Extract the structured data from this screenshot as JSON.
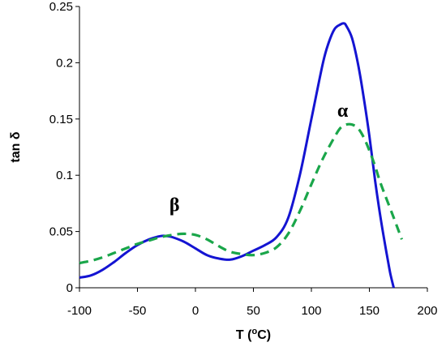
{
  "chart_data": {
    "type": "line",
    "title": "",
    "xlabel_prefix": "T (",
    "xlabel_sup": "o",
    "xlabel_suffix": "C)",
    "ylabel": "tan δ",
    "xlim": [
      -100,
      200
    ],
    "ylim": [
      0,
      0.25
    ],
    "x_ticks": [
      "-100",
      "-50",
      "0",
      "50",
      "100",
      "150",
      "200"
    ],
    "y_ticks": [
      "0",
      "0.05",
      "0.1",
      "0.15",
      "0.2",
      "0.25"
    ],
    "grid": false,
    "legend": "none",
    "annotations": [
      {
        "text": "β",
        "x": -18,
        "y": 0.068
      },
      {
        "text": "α",
        "x": 127,
        "y": 0.152
      }
    ],
    "series": [
      {
        "style": "solid",
        "color": "#1414d2",
        "x": [
          -100,
          -90,
          -80,
          -70,
          -60,
          -50,
          -40,
          -30,
          -25,
          -20,
          -10,
          0,
          10,
          20,
          30,
          40,
          50,
          60,
          70,
          80,
          90,
          100,
          110,
          115,
          120,
          125,
          128,
          130,
          135,
          140,
          145,
          150,
          155,
          160,
          165,
          168,
          171
        ],
        "y": [
          0.009,
          0.011,
          0.016,
          0.023,
          0.031,
          0.038,
          0.043,
          0.046,
          0.046,
          0.045,
          0.041,
          0.035,
          0.029,
          0.026,
          0.025,
          0.028,
          0.033,
          0.038,
          0.045,
          0.062,
          0.1,
          0.15,
          0.2,
          0.218,
          0.23,
          0.234,
          0.235,
          0.233,
          0.222,
          0.2,
          0.17,
          0.135,
          0.095,
          0.06,
          0.03,
          0.013,
          0.0
        ]
      },
      {
        "style": "dashed",
        "color": "#1aa64a",
        "x": [
          -100,
          -90,
          -80,
          -70,
          -60,
          -50,
          -40,
          -30,
          -20,
          -10,
          0,
          10,
          20,
          30,
          40,
          50,
          60,
          70,
          80,
          90,
          100,
          110,
          120,
          125,
          130,
          135,
          140,
          145,
          150,
          155,
          160,
          170,
          178
        ],
        "y": [
          0.022,
          0.024,
          0.027,
          0.031,
          0.035,
          0.039,
          0.042,
          0.045,
          0.047,
          0.048,
          0.047,
          0.043,
          0.037,
          0.032,
          0.03,
          0.029,
          0.031,
          0.036,
          0.048,
          0.068,
          0.092,
          0.115,
          0.134,
          0.142,
          0.145,
          0.145,
          0.142,
          0.134,
          0.122,
          0.108,
          0.092,
          0.065,
          0.043
        ]
      }
    ]
  }
}
